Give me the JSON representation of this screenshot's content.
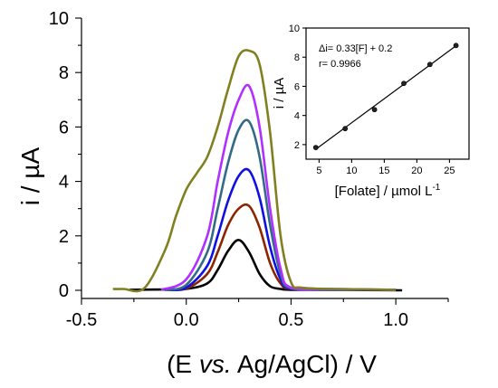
{
  "chart_data": [
    {
      "type": "line",
      "xlabel": "(E vs. Ag/AgCl) / V",
      "xlabel_parts": {
        "pre": "(E ",
        "italic": "vs.",
        "post": " Ag/AgCl) / V"
      },
      "ylabel": "i / µA",
      "xlim": [
        -0.5,
        1.25
      ],
      "ylim": [
        -0.3,
        10
      ],
      "xticks": [
        -0.5,
        0.0,
        0.5,
        1.0
      ],
      "xtick_labels": [
        "-0.5",
        "0.0",
        "0.5",
        "1.0"
      ],
      "yticks": [
        0,
        2,
        4,
        6,
        8,
        10
      ],
      "ytick_labels": [
        "0",
        "2",
        "4",
        "6",
        "8",
        "10"
      ],
      "grid": false,
      "series": [
        {
          "color": "#000000",
          "x": [
            -0.27,
            -0.1,
            0.0,
            0.1,
            0.15,
            0.2,
            0.25,
            0.3,
            0.35,
            0.4,
            0.45,
            0.5,
            0.7,
            1.03
          ],
          "y": [
            0.02,
            0.03,
            0.05,
            0.25,
            0.75,
            1.45,
            1.85,
            1.4,
            0.6,
            0.15,
            0.05,
            0.02,
            0.02,
            0.0
          ]
        },
        {
          "color": "#8B2500",
          "x": [
            -0.1,
            0.0,
            0.1,
            0.15,
            0.2,
            0.25,
            0.3,
            0.35,
            0.4,
            0.45,
            0.5,
            0.7,
            1.0
          ],
          "y": [
            0.02,
            0.06,
            0.6,
            1.4,
            2.4,
            3.0,
            3.1,
            2.3,
            1.0,
            0.25,
            0.05,
            0.03,
            0.02
          ]
        },
        {
          "color": "#1010e0",
          "x": [
            -0.1,
            0.0,
            0.1,
            0.15,
            0.2,
            0.25,
            0.3,
            0.35,
            0.4,
            0.45,
            0.5,
            0.7,
            1.0
          ],
          "y": [
            0.02,
            0.1,
            0.9,
            2.0,
            3.3,
            4.2,
            4.4,
            3.4,
            1.6,
            0.4,
            0.06,
            0.03,
            0.02
          ]
        },
        {
          "color": "#336b87",
          "x": [
            -0.1,
            0.0,
            0.1,
            0.15,
            0.2,
            0.25,
            0.3,
            0.35,
            0.4,
            0.45,
            0.5,
            0.7,
            1.0
          ],
          "y": [
            0.02,
            0.2,
            1.4,
            3.0,
            4.7,
            5.9,
            6.2,
            4.9,
            2.4,
            0.6,
            0.08,
            0.04,
            0.02
          ]
        },
        {
          "color": "#b030ff",
          "x": [
            -0.12,
            0.0,
            0.1,
            0.15,
            0.2,
            0.25,
            0.3,
            0.35,
            0.4,
            0.45,
            0.5,
            0.7,
            1.0
          ],
          "y": [
            0.02,
            0.4,
            2.0,
            4.0,
            5.8,
            7.0,
            7.5,
            6.0,
            3.0,
            0.8,
            0.1,
            0.05,
            0.02
          ]
        },
        {
          "color": "#808020",
          "x": [
            -0.35,
            -0.3,
            -0.2,
            -0.1,
            -0.05,
            0.0,
            0.05,
            0.1,
            0.15,
            0.2,
            0.25,
            0.3,
            0.35,
            0.4,
            0.45,
            0.5,
            0.55,
            0.7,
            1.0
          ],
          "y": [
            0.05,
            0.05,
            0.08,
            1.5,
            2.7,
            3.7,
            4.3,
            4.9,
            6.0,
            7.4,
            8.6,
            8.8,
            8.3,
            5.8,
            2.0,
            0.3,
            0.1,
            0.05,
            0.02
          ]
        }
      ]
    },
    {
      "type": "scatter",
      "xlabel": "[Folate] / µmol L",
      "xlabel_sup": "-1",
      "ylabel": "i / µA",
      "xlim": [
        3,
        28
      ],
      "ylim": [
        1,
        10
      ],
      "xticks": [
        5,
        10,
        15,
        20,
        25
      ],
      "xtick_labels": [
        "5",
        "10",
        "15",
        "20",
        "25"
      ],
      "yticks": [
        2,
        4,
        6,
        8,
        10
      ],
      "ytick_labels": [
        "2",
        "4",
        "6",
        "8",
        "10"
      ],
      "grid": false,
      "x": [
        4.5,
        9,
        13.5,
        18,
        22,
        26
      ],
      "y": [
        1.8,
        3.1,
        4.4,
        6.2,
        7.5,
        8.8
      ],
      "fit": {
        "x": [
          4.5,
          26
        ],
        "slope": 0.33,
        "intercept": 0.2
      },
      "annotations": [
        "Δi= 0.33[F] + 0.2",
        "r= 0.9966"
      ]
    }
  ]
}
